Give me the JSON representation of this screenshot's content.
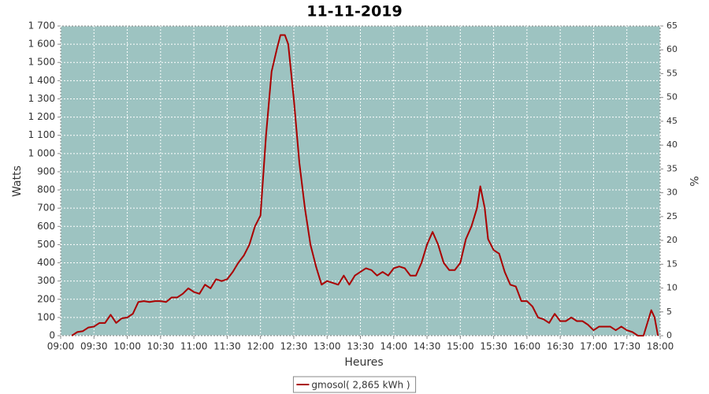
{
  "chart_data": {
    "type": "line",
    "title": "11-11-2019",
    "xlabel": "Heures",
    "ylabel": "Watts",
    "y2label": "%",
    "x": [
      "09:10",
      "09:15",
      "09:20",
      "09:25",
      "09:30",
      "09:35",
      "09:40",
      "09:45",
      "09:50",
      "09:55",
      "10:00",
      "10:05",
      "10:10",
      "10:15",
      "10:20",
      "10:25",
      "10:30",
      "10:35",
      "10:40",
      "10:45",
      "10:50",
      "10:55",
      "11:00",
      "11:05",
      "11:10",
      "11:15",
      "11:20",
      "11:25",
      "11:30",
      "11:35",
      "11:40",
      "11:45",
      "11:50",
      "11:55",
      "12:00",
      "12:05",
      "12:10",
      "12:15",
      "12:18",
      "12:22",
      "12:25",
      "12:30",
      "12:35",
      "12:40",
      "12:45",
      "12:50",
      "12:55",
      "13:00",
      "13:05",
      "13:10",
      "13:15",
      "13:20",
      "13:25",
      "13:30",
      "13:35",
      "13:40",
      "13:45",
      "13:50",
      "13:55",
      "14:00",
      "14:05",
      "14:10",
      "14:15",
      "14:20",
      "14:25",
      "14:30",
      "14:35",
      "14:40",
      "14:45",
      "14:50",
      "14:55",
      "15:00",
      "15:05",
      "15:10",
      "15:15",
      "15:18",
      "15:22",
      "15:25",
      "15:30",
      "15:35",
      "15:40",
      "15:45",
      "15:50",
      "15:55",
      "16:00",
      "16:05",
      "16:10",
      "16:15",
      "16:20",
      "16:25",
      "16:30",
      "16:35",
      "16:40",
      "16:45",
      "16:50",
      "16:55",
      "17:00",
      "17:05",
      "17:10",
      "17:15",
      "17:20",
      "17:25",
      "17:30",
      "17:35",
      "17:40",
      "17:45",
      "17:50",
      "17:52",
      "17:55",
      "17:58"
    ],
    "series": [
      {
        "name": "gmosol( 2,865 kWh )",
        "color": "#aa0000",
        "values": [
          0,
          20,
          25,
          45,
          50,
          70,
          70,
          115,
          70,
          95,
          100,
          120,
          185,
          190,
          185,
          190,
          190,
          185,
          210,
          210,
          230,
          260,
          240,
          230,
          280,
          260,
          310,
          300,
          310,
          350,
          400,
          440,
          500,
          600,
          660,
          1100,
          1450,
          1580,
          1650,
          1650,
          1600,
          1300,
          950,
          700,
          500,
          380,
          280,
          300,
          290,
          280,
          330,
          280,
          330,
          350,
          370,
          360,
          330,
          350,
          330,
          370,
          380,
          370,
          330,
          330,
          400,
          500,
          570,
          500,
          400,
          360,
          360,
          400,
          530,
          600,
          700,
          820,
          700,
          530,
          470,
          450,
          350,
          280,
          270,
          190,
          190,
          160,
          100,
          90,
          70,
          120,
          80,
          80,
          100,
          80,
          80,
          60,
          30,
          50,
          50,
          50,
          30,
          50,
          30,
          20,
          0,
          0,
          100,
          140,
          100,
          0
        ]
      }
    ],
    "xlim": [
      "09:00",
      "18:00"
    ],
    "xticks": [
      "09:00",
      "09:30",
      "10:00",
      "10:30",
      "11:00",
      "11:30",
      "12:00",
      "12:30",
      "13:00",
      "13:30",
      "14:00",
      "14:30",
      "15:00",
      "15:30",
      "16:00",
      "16:30",
      "17:00",
      "17:30",
      "18:00"
    ],
    "ylim": [
      0,
      1700
    ],
    "yticks": [
      0,
      100,
      200,
      300,
      400,
      500,
      600,
      700,
      800,
      900,
      {
        "value": 1000,
        "label": "1 000"
      },
      {
        "value": 1100,
        "label": "1 100"
      },
      {
        "value": 1200,
        "label": "1 200"
      },
      {
        "value": 1300,
        "label": "1 300"
      },
      {
        "value": 1400,
        "label": "1 400"
      },
      {
        "value": 1500,
        "label": "1 500"
      },
      {
        "value": 1600,
        "label": "1 600"
      },
      {
        "value": 1700,
        "label": "1 700"
      }
    ],
    "y2lim": [
      0,
      65
    ],
    "y2ticks": [
      0,
      5,
      10,
      15,
      20,
      25,
      30,
      35,
      40,
      45,
      50,
      55,
      60,
      65
    ],
    "grid": true,
    "plot_background": "#9dc3c1",
    "legend": "bottom"
  }
}
